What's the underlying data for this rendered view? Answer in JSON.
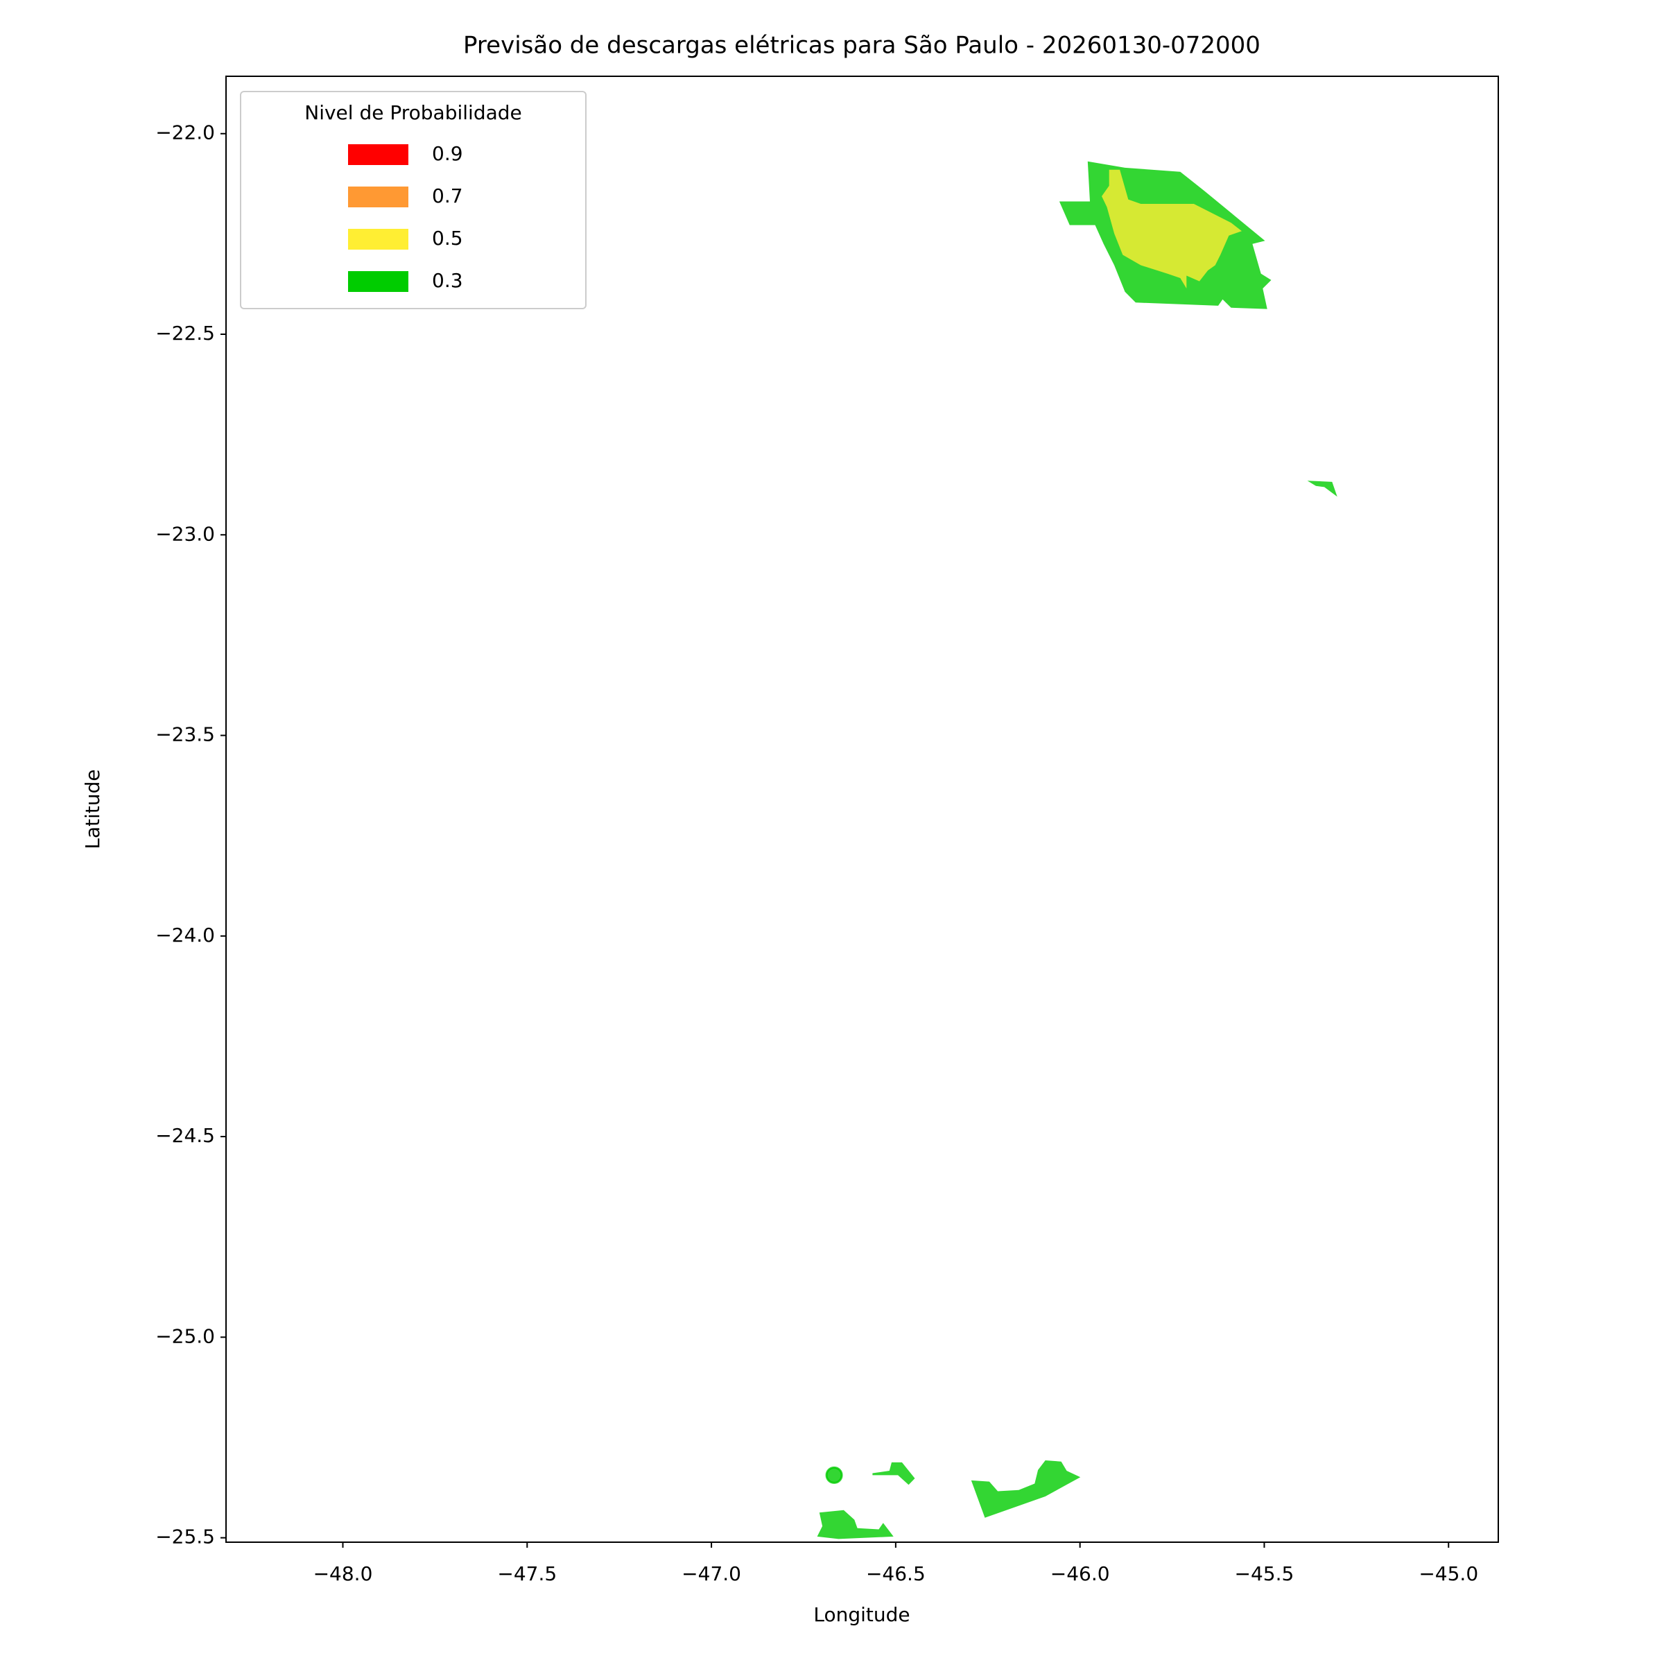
{
  "chart_data": {
    "type": "map",
    "title": "Previsão de descargas elétricas para São Paulo - 20260130-072000",
    "x_label": "Longitude",
    "y_label": "Latitude",
    "xlim": [
      -48.317,
      -44.865
    ],
    "ylim": [
      -25.511,
      -21.857
    ],
    "xticks": [
      {
        "value": -48.0,
        "label": "−48.0"
      },
      {
        "value": -47.5,
        "label": "−47.5"
      },
      {
        "value": -47.0,
        "label": "−47.0"
      },
      {
        "value": -46.5,
        "label": "−46.5"
      },
      {
        "value": -46.0,
        "label": "−46.0"
      },
      {
        "value": -45.5,
        "label": "−45.5"
      },
      {
        "value": -45.0,
        "label": "−45.0"
      }
    ],
    "yticks": [
      {
        "value": -22.0,
        "label": "−22.0"
      },
      {
        "value": -22.5,
        "label": "−22.5"
      },
      {
        "value": -23.0,
        "label": "−23.0"
      },
      {
        "value": -23.5,
        "label": "−23.5"
      },
      {
        "value": -24.0,
        "label": "−24.0"
      },
      {
        "value": -24.5,
        "label": "−24.5"
      },
      {
        "value": -25.0,
        "label": "−25.0"
      },
      {
        "value": -25.5,
        "label": "−25.5"
      }
    ],
    "legend_title": "Nivel de Probabilidade",
    "legend_position": "upper left",
    "alpha": 0.8,
    "levels": [
      {
        "value": 0.9,
        "color": "#ff0000"
      },
      {
        "value": 0.7,
        "color": "#ff9933"
      },
      {
        "value": 0.5,
        "color": "#ffee33"
      },
      {
        "value": 0.3,
        "color": "#00cc00"
      }
    ],
    "regions": [
      {
        "level": 0.3,
        "lon": [
          -45.979,
          -45.878,
          -45.728,
          -45.662,
          -45.498,
          -45.532,
          -45.509,
          -45.481,
          -45.504,
          -45.492,
          -45.59,
          -45.613,
          -45.625,
          -45.849,
          -45.878,
          -45.907,
          -45.936,
          -45.959,
          -46.028,
          -46.056,
          -45.973
        ],
        "lat": [
          -22.069,
          -22.085,
          -22.095,
          -22.143,
          -22.267,
          -22.275,
          -22.349,
          -22.365,
          -22.386,
          -22.437,
          -22.434,
          -22.413,
          -22.429,
          -22.421,
          -22.394,
          -22.328,
          -22.275,
          -22.228,
          -22.228,
          -22.169,
          -22.169
        ]
      },
      {
        "level": 0.5,
        "lon": [
          -45.921,
          -45.892,
          -45.869,
          -45.835,
          -45.691,
          -45.59,
          -45.561,
          -45.596,
          -45.619,
          -45.633,
          -45.653,
          -45.676,
          -45.711,
          -45.711,
          -45.728,
          -45.763,
          -45.835,
          -45.884,
          -45.907,
          -45.927,
          -45.941,
          -45.921
        ],
        "lat": [
          -22.09,
          -22.09,
          -22.164,
          -22.175,
          -22.175,
          -22.222,
          -22.243,
          -22.254,
          -22.302,
          -22.328,
          -22.341,
          -22.368,
          -22.354,
          -22.386,
          -22.36,
          -22.349,
          -22.328,
          -22.302,
          -22.249,
          -22.183,
          -22.156,
          -22.13
        ]
      },
      {
        "level": 0.3,
        "lon": [
          -45.383,
          -45.316,
          -45.302,
          -45.337,
          -45.36
        ],
        "lat": [
          -22.865,
          -22.868,
          -22.905,
          -22.881,
          -22.878
        ]
      },
      {
        "level": 0.3,
        "lon": [
          -46.707,
          -46.641,
          -46.612,
          -46.604,
          -46.546,
          -46.534,
          -46.506,
          -46.655,
          -46.713,
          -46.699
        ],
        "lat": [
          -25.437,
          -25.431,
          -25.455,
          -25.476,
          -25.479,
          -25.463,
          -25.497,
          -25.503,
          -25.497,
          -25.471
        ]
      },
      {
        "level": 0.3,
        "lon": [
          -46.563,
          -46.517,
          -46.511,
          -46.483,
          -46.448,
          -46.465,
          -46.494,
          -46.563
        ],
        "lat": [
          -25.339,
          -25.333,
          -25.312,
          -25.312,
          -25.352,
          -25.368,
          -25.344,
          -25.344
        ]
      },
      {
        "level": 0.3,
        "lon": [
          -46.295,
          -46.246,
          -46.223,
          -46.166,
          -46.123,
          -46.114,
          -46.094,
          -46.051,
          -46.036,
          -45.999,
          -46.094,
          -46.258
        ],
        "lat": [
          -25.357,
          -25.36,
          -25.384,
          -25.381,
          -25.365,
          -25.331,
          -25.307,
          -25.31,
          -25.333,
          -25.349,
          -25.397,
          -25.45
        ]
      },
      {
        "level": 0.3,
        "lon": [
          -46.667
        ],
        "lat": [
          -25.344
        ]
      }
    ]
  }
}
